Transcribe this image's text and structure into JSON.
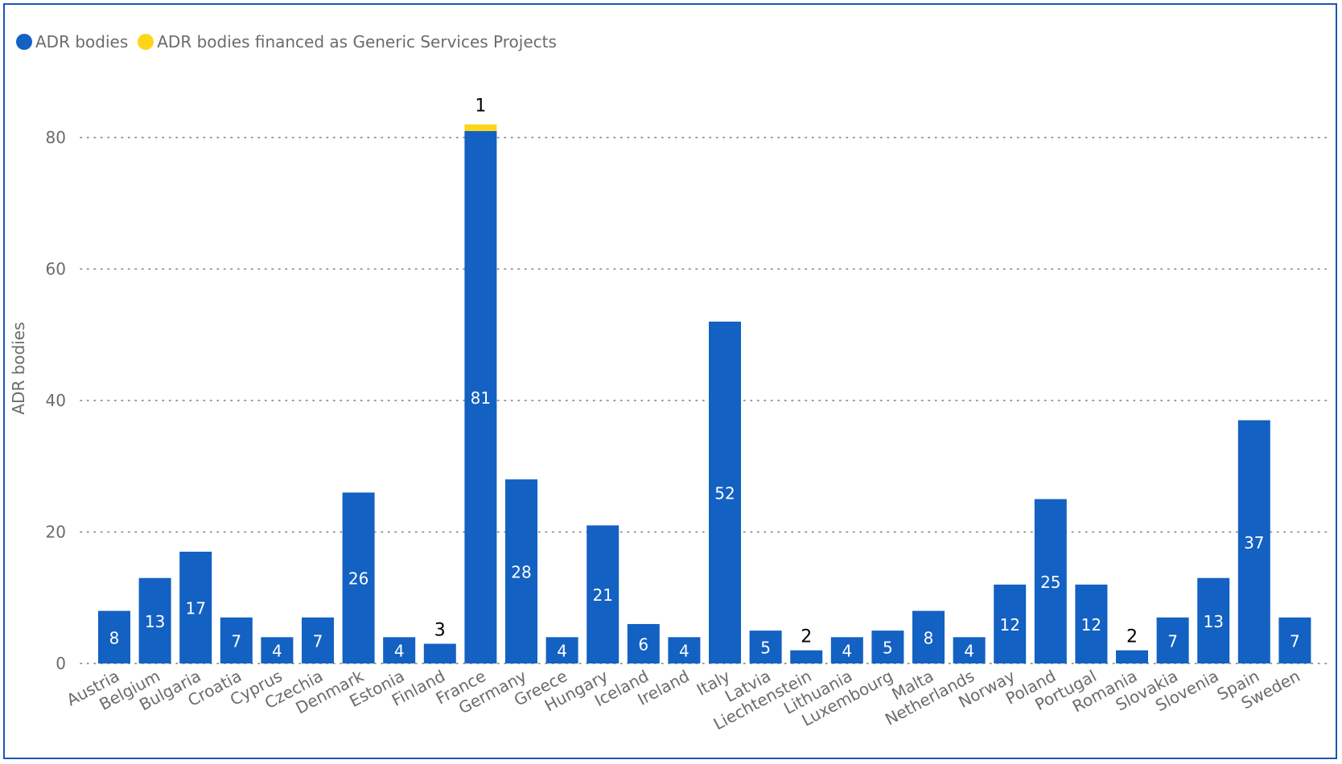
{
  "chart_data": {
    "type": "bar",
    "stacked": true,
    "ylabel": "ADR bodies",
    "ylim": [
      0,
      90
    ],
    "yticks": [
      0,
      20,
      40,
      60,
      80
    ],
    "grid": "horizontal-dotted",
    "legend_position": "top-left",
    "categories": [
      "Austria",
      "Belgium",
      "Bulgaria",
      "Croatia",
      "Cyprus",
      "Czechia",
      "Denmark",
      "Estonia",
      "Finland",
      "France",
      "Germany",
      "Greece",
      "Hungary",
      "Iceland",
      "Ireland",
      "Italy",
      "Latvia",
      "Liechtenstein",
      "Lithuania",
      "Luxembourg",
      "Malta",
      "Netherlands",
      "Norway",
      "Poland",
      "Portugal",
      "Romania",
      "Slovakia",
      "Slovenia",
      "Spain",
      "Sweden"
    ],
    "series": [
      {
        "name": "ADR bodies",
        "color": "#1361c2",
        "values": [
          8,
          13,
          17,
          7,
          4,
          7,
          26,
          4,
          3,
          81,
          28,
          4,
          21,
          6,
          4,
          52,
          5,
          2,
          4,
          5,
          8,
          4,
          12,
          25,
          12,
          2,
          7,
          13,
          37,
          7
        ]
      },
      {
        "name": "ADR bodies financed as Generic Services Projects",
        "color": "#ffd617",
        "values": [
          0,
          0,
          0,
          0,
          0,
          0,
          0,
          0,
          0,
          1,
          0,
          0,
          0,
          0,
          0,
          0,
          0,
          0,
          0,
          0,
          0,
          0,
          0,
          0,
          0,
          0,
          0,
          0,
          0,
          0
        ]
      }
    ]
  }
}
